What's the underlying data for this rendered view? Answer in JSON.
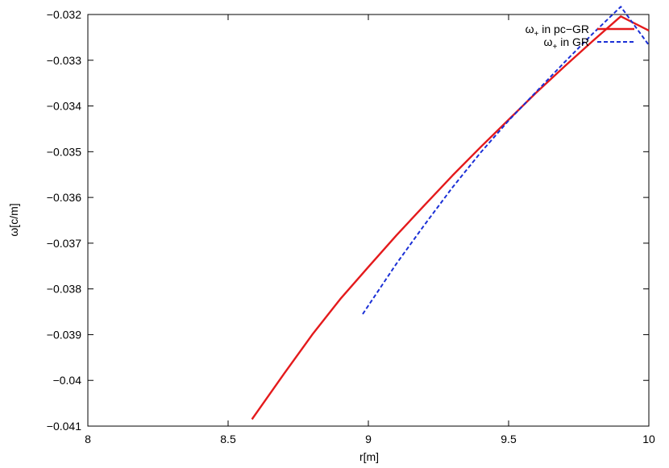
{
  "chart_data": {
    "type": "line",
    "xlabel": "r[m]",
    "ylabel": "ω[c/m]",
    "xlim": [
      8,
      10
    ],
    "ylim": [
      -0.041,
      -0.032
    ],
    "xticks": [
      "8",
      "8.5",
      "9",
      "9.5",
      "10"
    ],
    "yticks": [
      "−0.032",
      "−0.033",
      "−0.034",
      "−0.035",
      "−0.036",
      "−0.037",
      "−0.038",
      "−0.039",
      "−0.04",
      "−0.041"
    ],
    "xtick_values": [
      8,
      8.5,
      9,
      9.5,
      10
    ],
    "ytick_values": [
      -0.032,
      -0.033,
      -0.034,
      -0.035,
      -0.036,
      -0.037,
      -0.038,
      -0.039,
      -0.04,
      -0.041
    ],
    "grid": false,
    "legend_position": "top-right",
    "series": [
      {
        "name_base": "ω",
        "name_sub": "+",
        "name_rest": " in pc−GR",
        "color": "#e41a1c",
        "style": "solid",
        "x": [
          8.585,
          8.7,
          8.8,
          8.9,
          9.0,
          9.1,
          9.2,
          9.3,
          9.4,
          9.5,
          9.6,
          9.7,
          9.8,
          9.9,
          10.0
        ],
        "y": [
          -0.04085,
          -0.03985,
          -0.039,
          -0.03822,
          -0.03752,
          -0.03683,
          -0.03617,
          -0.03552,
          -0.0349,
          -0.0343,
          -0.0337,
          -0.03313,
          -0.03258,
          -0.03204,
          -0.03235
        ]
      },
      {
        "name_base": "ω",
        "name_sub": "+",
        "name_rest": " in GR",
        "color": "#1a2fd6",
        "style": "dashed",
        "x": [
          8.98,
          9.1,
          9.2,
          9.3,
          9.4,
          9.5,
          9.6,
          9.7,
          9.8,
          9.9,
          10.0
        ],
        "y": [
          -0.03855,
          -0.03745,
          -0.0366,
          -0.03578,
          -0.03502,
          -0.03432,
          -0.03368,
          -0.03304,
          -0.03242,
          -0.03183,
          -0.03267
        ]
      }
    ]
  }
}
